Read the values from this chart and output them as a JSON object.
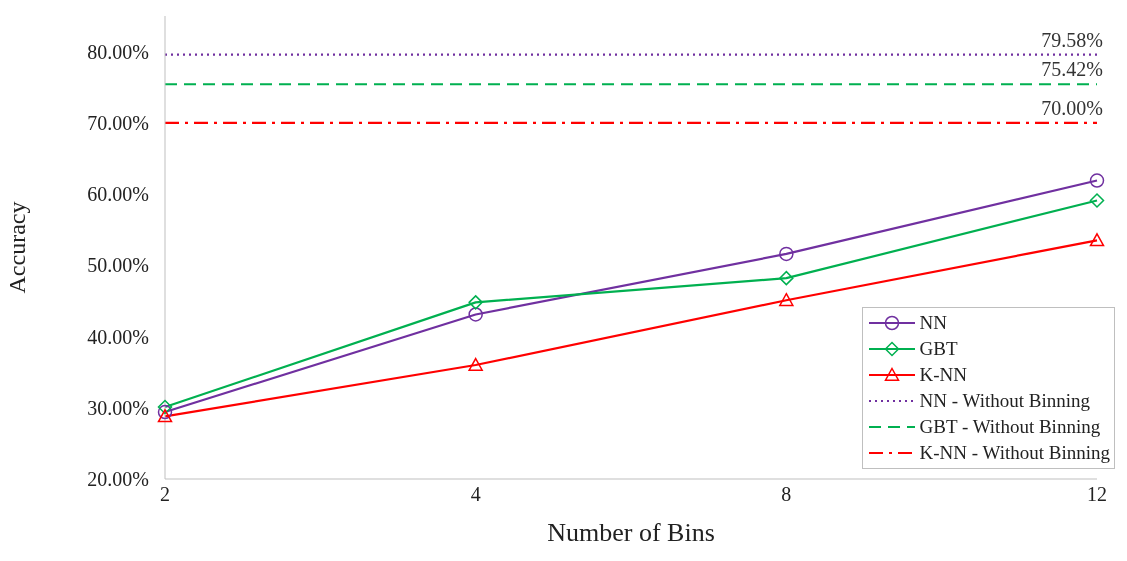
{
  "chart_data": {
    "type": "line",
    "xlabel": "Number of Bins",
    "ylabel": "Accuracy",
    "categories": [
      "2",
      "4",
      "8",
      "12"
    ],
    "ylim": [
      20,
      85
    ],
    "yticks": [
      {
        "value": 20,
        "label": "20.00%"
      },
      {
        "value": 30,
        "label": "30.00%"
      },
      {
        "value": 40,
        "label": "40.00%"
      },
      {
        "value": 50,
        "label": "50.00%"
      },
      {
        "value": 60,
        "label": "60.00%"
      },
      {
        "value": 70,
        "label": "70.00%"
      },
      {
        "value": 80,
        "label": "80.00%"
      }
    ],
    "grid": false,
    "legend": "bottom right",
    "series": [
      {
        "name": "NN",
        "color": "#7030a0",
        "values": [
          29.4,
          43.1,
          51.6,
          61.9
        ],
        "marker": "circle",
        "line_style": "solid"
      },
      {
        "name": "GBT",
        "color": "#00b050",
        "values": [
          30.1,
          44.8,
          48.2,
          59.1
        ],
        "marker": "diamond",
        "line_style": "solid"
      },
      {
        "name": "K-NN",
        "color": "#ff0000",
        "values": [
          28.8,
          36.0,
          45.1,
          53.5
        ],
        "marker": "triangle",
        "line_style": "solid"
      },
      {
        "name": "NN - Without Binning",
        "color": "#7030a0",
        "values": [
          79.58,
          79.58,
          79.58,
          79.58
        ],
        "marker": "none",
        "line_style": "dotted",
        "value_labels": [
          null,
          null,
          null,
          "79.58%"
        ]
      },
      {
        "name": "GBT - Without Binning",
        "color": "#00b050",
        "values": [
          75.42,
          75.42,
          75.42,
          75.42
        ],
        "marker": "none",
        "line_style": "dashed",
        "value_labels": [
          null,
          null,
          null,
          "75.42%"
        ]
      },
      {
        "name": "K-NN - Without Binning",
        "color": "#ff0000",
        "values": [
          70.0,
          70.0,
          70.0,
          70.0
        ],
        "marker": "none",
        "line_style": "dashdot",
        "value_labels": [
          null,
          null,
          null,
          "70.00%"
        ]
      }
    ]
  }
}
